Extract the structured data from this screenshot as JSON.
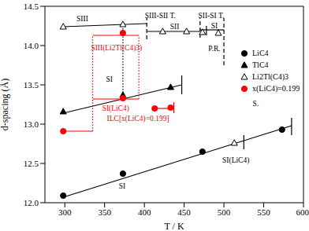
{
  "chart_data": {
    "type": "scatter",
    "xlabel": "T / K",
    "ylabel": "d-spacing (Å)",
    "xlim": [
      275,
      600
    ],
    "xticks": [
      300,
      350,
      400,
      450,
      500,
      550,
      600
    ],
    "ylim": [
      12.0,
      14.5
    ],
    "yticks": [
      {
        "value": 12.0,
        "label": "12.0"
      },
      12.5,
      {
        "value": 13.0,
        "label": "13.0"
      },
      13.5,
      {
        "value": 14.0,
        "label": "14.0"
      },
      14.5
    ],
    "legend": "upper right",
    "series": [
      {
        "name": "LiC4",
        "color": "#000000",
        "marker": "circle",
        "x": [
          298,
          373,
          473,
          573
        ],
        "values": [
          12.09,
          12.37,
          12.65,
          12.93
        ]
      },
      {
        "name": "TlC4",
        "color": "#000000",
        "marker": "triangle",
        "x": [
          298,
          373,
          433
        ],
        "values": [
          13.16,
          13.37,
          13.47
        ]
      },
      {
        "name": "Li2Tl(C4)3",
        "color": "#000000",
        "marker": "triangle-open",
        "x": [
          298,
          373,
          423,
          453,
          473,
          493,
          513
        ],
        "values": [
          14.24,
          14.27,
          14.18,
          14.18,
          14.17,
          14.16,
          12.76
        ]
      },
      {
        "name": "x(LiC4)=0.199",
        "color": "#ff0000",
        "marker": "circle",
        "x": [
          298,
          373,
          373,
          413,
          433
        ],
        "values": [
          12.91,
          14.16,
          13.33,
          13.2,
          13.21
        ]
      }
    ],
    "segments": [
      {
        "x": [
          298,
          585
        ],
        "y": [
          12.07,
          12.98
        ],
        "color": "#000000",
        "line_style": "solid"
      },
      {
        "x": [
          585,
          585
        ],
        "y": [
          12.86,
          13.08
        ],
        "color": "#000000",
        "line_style": "solid"
      },
      {
        "x": [
          298,
          447
        ],
        "y": [
          13.14,
          13.5
        ],
        "color": "#000000",
        "line_style": "solid"
      },
      {
        "x": [
          447,
          447
        ],
        "y": [
          13.38,
          13.62
        ],
        "color": "#000000",
        "line_style": "solid"
      },
      {
        "x": [
          298,
          403
        ],
        "y": [
          14.24,
          14.28
        ],
        "color": "#000000",
        "line_style": "solid"
      },
      {
        "x": [
          403,
          470
        ],
        "y": [
          14.18,
          14.18
        ],
        "color": "#000000",
        "line_style": "solid"
      },
      {
        "x": [
          470,
          500
        ],
        "y": [
          14.2,
          14.2
        ],
        "color": "#000000",
        "line_style": "solid"
      },
      {
        "x": [
          478,
          478
        ],
        "y": [
          14.13,
          14.25
        ],
        "color": "#000000",
        "line_style": "solid"
      },
      {
        "x": [
          525,
          525
        ],
        "y": [
          12.68,
          12.86
        ],
        "color": "#000000",
        "line_style": "solid"
      },
      {
        "x": [
          403,
          403
        ],
        "y": [
          14.08,
          14.35
        ],
        "color": "#000000",
        "line_style": "dashed"
      },
      {
        "x": [
          470,
          470
        ],
        "y": [
          14.1,
          14.35
        ],
        "color": "#000000",
        "line_style": "dashed"
      },
      {
        "x": [
          500,
          500
        ],
        "y": [
          13.75,
          14.35
        ],
        "color": "#000000",
        "line_style": "dashed"
      },
      {
        "x": [
          373,
          373
        ],
        "y": [
          13.33,
          14.22
        ],
        "color": "#000000",
        "line_style": "dotted"
      },
      {
        "x": [
          298,
          335
        ],
        "y": [
          12.91,
          12.91
        ],
        "color": "#ff0000",
        "line_style": "solid"
      },
      {
        "x": [
          335,
          393
        ],
        "y": [
          14.13,
          14.13
        ],
        "color": "#ff0000",
        "line_style": "solid"
      },
      {
        "x": [
          335,
          393
        ],
        "y": [
          13.32,
          13.32
        ],
        "color": "#ff0000",
        "line_style": "solid"
      },
      {
        "x": [
          413,
          437
        ],
        "y": [
          13.2,
          13.2
        ],
        "color": "#ff0000",
        "line_style": "solid"
      },
      {
        "x": [
          437,
          437
        ],
        "y": [
          13.14,
          13.28
        ],
        "color": "#ff0000",
        "line_style": "solid"
      },
      {
        "x": [
          335,
          335
        ],
        "y": [
          12.91,
          14.13
        ],
        "color": "#ff0000",
        "line_style": "dotted"
      },
      {
        "x": [
          393,
          393
        ],
        "y": [
          13.32,
          14.13
        ],
        "color": "#ff0000",
        "line_style": "dotted"
      }
    ],
    "annotations": [
      {
        "text": "SIII",
        "x": 322,
        "y": 14.33,
        "color": "#000000"
      },
      {
        "text": "SIII-SII T.",
        "x": 420,
        "y": 14.37,
        "color": "#000000"
      },
      {
        "text": "SII-SI T.",
        "x": 484,
        "y": 14.37,
        "color": "#000000"
      },
      {
        "text": "SII",
        "x": 438,
        "y": 14.23,
        "color": "#000000"
      },
      {
        "text": "SI",
        "x": 488,
        "y": 14.24,
        "color": "#000000"
      },
      {
        "text": "P.R.",
        "x": 488,
        "y": 13.95,
        "color": "#000000"
      },
      {
        "text": "SI",
        "x": 356,
        "y": 13.56,
        "color": "#000000"
      },
      {
        "text": "SI",
        "x": 372,
        "y": 12.2,
        "color": "#000000"
      },
      {
        "text": "S.",
        "x": 540,
        "y": 13.25,
        "color": "#000000"
      },
      {
        "text": "SI(LiC4)",
        "x": 515,
        "y": 12.53,
        "color": "#000000"
      },
      {
        "text": "SIII(Li2Tl(C4)3)",
        "x": 365,
        "y": 13.96,
        "color": "#ff0000"
      },
      {
        "text": "SI(LiC4)",
        "x": 364,
        "y": 13.19,
        "color": "#ff0000"
      },
      {
        "text": "ILC[x(LiC4)=0.199]",
        "x": 392,
        "y": 13.06,
        "color": "#ff0000"
      }
    ]
  }
}
